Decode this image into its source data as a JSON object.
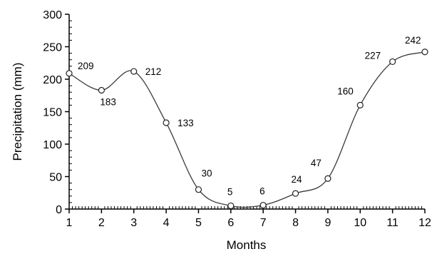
{
  "chart_data": {
    "type": "line",
    "title": "",
    "xlabel": "Months",
    "ylabel": "Precipitation (mm)",
    "x": [
      1,
      2,
      3,
      4,
      5,
      6,
      7,
      8,
      9,
      10,
      11,
      12
    ],
    "values": [
      209,
      183,
      212,
      133,
      30,
      5,
      6,
      24,
      47,
      160,
      227,
      242
    ],
    "data_labels": [
      "209",
      "183",
      "212",
      "133",
      "30",
      "5",
      "6",
      "24",
      "47",
      "160",
      "227",
      "242"
    ],
    "xlim": [
      1,
      12
    ],
    "ylim": [
      0,
      300
    ],
    "x_ticks": [
      "1",
      "2",
      "3",
      "4",
      "5",
      "6",
      "7",
      "8",
      "9",
      "10",
      "11",
      "12"
    ],
    "y_ticks": [
      "0",
      "50",
      "100",
      "150",
      "200",
      "250",
      "300"
    ],
    "y_tick_values": [
      0,
      50,
      100,
      150,
      200,
      250,
      300
    ],
    "grid": false,
    "legend": "none",
    "smooth": true,
    "marker": "open-circle",
    "line_color": "#3a3a3a",
    "marker_fill": "#ffffff"
  }
}
